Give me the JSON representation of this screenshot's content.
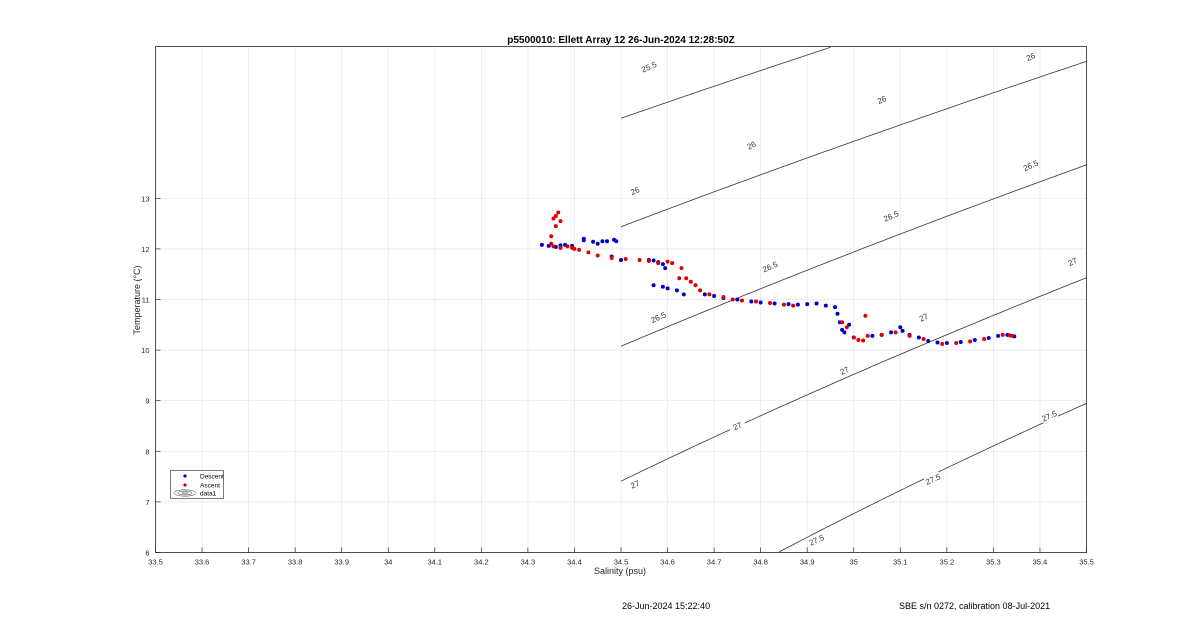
{
  "chart_data": {
    "type": "scatter",
    "title": "p5500010: Ellett Array 12 26-Jun-2024 12:28:50Z",
    "xlabel": "Salinity (psu)",
    "ylabel": "Temperature (°C)",
    "xlim": [
      33.5,
      35.5
    ],
    "ylim": [
      6,
      16
    ],
    "x_ticks": [
      "33.5",
      "33.6",
      "33.7",
      "33.8",
      "33.9",
      "34",
      "34.1",
      "34.2",
      "34.3",
      "34.4",
      "34.5",
      "34.6",
      "34.7",
      "34.8",
      "34.9",
      "35",
      "35.1",
      "35.2",
      "35.3",
      "35.4",
      "35.5"
    ],
    "y_ticks": [
      "6",
      "7",
      "8",
      "9",
      "10",
      "11",
      "12",
      "13"
    ],
    "grid": true,
    "legend_position": "bottom-left",
    "legend": [
      "Descent",
      "Ascent",
      "data1"
    ],
    "colors": {
      "descent": "#0000cc",
      "ascent": "#dd0000",
      "contour": "#333333",
      "grid": "#e6e6e6",
      "axis": "#262626"
    },
    "series": [
      {
        "name": "Descent",
        "points": [
          [
            34.33,
            12.08
          ],
          [
            34.345,
            12.06
          ],
          [
            34.36,
            12.04
          ],
          [
            34.37,
            12.07
          ],
          [
            34.38,
            12.08
          ],
          [
            34.395,
            12.06
          ],
          [
            34.42,
            12.2
          ],
          [
            34.42,
            12.17
          ],
          [
            34.44,
            12.14
          ],
          [
            34.45,
            12.1
          ],
          [
            34.46,
            12.15
          ],
          [
            34.47,
            12.15
          ],
          [
            34.485,
            12.18
          ],
          [
            34.49,
            12.15
          ],
          [
            34.48,
            11.85
          ],
          [
            34.5,
            11.78
          ],
          [
            34.56,
            11.78
          ],
          [
            34.57,
            11.77
          ],
          [
            34.58,
            11.74
          ],
          [
            34.59,
            11.7
          ],
          [
            34.595,
            11.62
          ],
          [
            34.57,
            11.28
          ],
          [
            34.59,
            11.25
          ],
          [
            34.6,
            11.22
          ],
          [
            34.62,
            11.18
          ],
          [
            34.635,
            11.1
          ],
          [
            34.68,
            11.1
          ],
          [
            34.7,
            11.07
          ],
          [
            34.72,
            11.03
          ],
          [
            34.75,
            11.0
          ],
          [
            34.78,
            10.96
          ],
          [
            34.8,
            10.94
          ],
          [
            34.83,
            10.92
          ],
          [
            34.86,
            10.91
          ],
          [
            34.88,
            10.9
          ],
          [
            34.9,
            10.91
          ],
          [
            34.92,
            10.92
          ],
          [
            34.94,
            10.88
          ],
          [
            34.96,
            10.85
          ],
          [
            34.965,
            10.72
          ],
          [
            34.97,
            10.55
          ],
          [
            34.975,
            10.4
          ],
          [
            34.98,
            10.35
          ],
          [
            34.99,
            10.5
          ],
          [
            35.0,
            10.25
          ],
          [
            35.04,
            10.28
          ],
          [
            35.06,
            10.3
          ],
          [
            35.08,
            10.35
          ],
          [
            35.1,
            10.45
          ],
          [
            35.105,
            10.38
          ],
          [
            35.12,
            10.3
          ],
          [
            35.14,
            10.25
          ],
          [
            35.16,
            10.18
          ],
          [
            35.18,
            10.15
          ],
          [
            35.2,
            10.14
          ],
          [
            35.23,
            10.16
          ],
          [
            35.26,
            10.2
          ],
          [
            35.29,
            10.24
          ],
          [
            35.31,
            10.28
          ],
          [
            35.33,
            10.3
          ],
          [
            35.345,
            10.27
          ]
        ]
      },
      {
        "name": "Ascent",
        "points": [
          [
            34.35,
            12.25
          ],
          [
            34.355,
            12.6
          ],
          [
            34.36,
            12.65
          ],
          [
            34.365,
            12.72
          ],
          [
            34.37,
            12.55
          ],
          [
            34.36,
            12.45
          ],
          [
            34.35,
            12.1
          ],
          [
            34.355,
            12.05
          ],
          [
            34.37,
            12.02
          ],
          [
            34.385,
            12.05
          ],
          [
            34.395,
            12.02
          ],
          [
            34.4,
            12.0
          ],
          [
            34.41,
            11.98
          ],
          [
            34.43,
            11.93
          ],
          [
            34.45,
            11.87
          ],
          [
            34.48,
            11.82
          ],
          [
            34.51,
            11.8
          ],
          [
            34.54,
            11.78
          ],
          [
            34.56,
            11.76
          ],
          [
            34.58,
            11.72
          ],
          [
            34.6,
            11.75
          ],
          [
            34.61,
            11.72
          ],
          [
            34.63,
            11.62
          ],
          [
            34.625,
            11.42
          ],
          [
            34.64,
            11.42
          ],
          [
            34.65,
            11.35
          ],
          [
            34.66,
            11.28
          ],
          [
            34.67,
            11.18
          ],
          [
            34.69,
            11.1
          ],
          [
            34.72,
            11.05
          ],
          [
            34.74,
            11.0
          ],
          [
            34.76,
            10.98
          ],
          [
            34.79,
            10.96
          ],
          [
            34.82,
            10.93
          ],
          [
            34.85,
            10.9
          ],
          [
            34.87,
            10.88
          ],
          [
            34.975,
            10.55
          ],
          [
            34.985,
            10.45
          ],
          [
            35.0,
            10.25
          ],
          [
            35.01,
            10.2
          ],
          [
            35.02,
            10.19
          ],
          [
            35.025,
            10.68
          ],
          [
            35.03,
            10.28
          ],
          [
            35.06,
            10.3
          ],
          [
            35.09,
            10.35
          ],
          [
            35.12,
            10.28
          ],
          [
            35.15,
            10.22
          ],
          [
            35.19,
            10.12
          ],
          [
            35.22,
            10.14
          ],
          [
            35.25,
            10.17
          ],
          [
            35.28,
            10.22
          ],
          [
            35.32,
            10.3
          ],
          [
            35.335,
            10.29
          ],
          [
            35.34,
            10.28
          ]
        ]
      }
    ],
    "contours": [
      {
        "label": "25.5",
        "label_positions": [
          [
            34.56,
            15.6
          ]
        ]
      },
      {
        "label": "26",
        "label_positions": [
          [
            34.53,
            13.15
          ],
          [
            34.78,
            14.05
          ],
          [
            35.06,
            14.95
          ],
          [
            35.38,
            15.8
          ]
        ]
      },
      {
        "label": "26.5",
        "label_positions": [
          [
            34.58,
            10.65
          ],
          [
            34.82,
            11.65
          ],
          [
            35.08,
            12.65
          ],
          [
            35.38,
            13.65
          ]
        ]
      },
      {
        "label": "27",
        "label_positions": [
          [
            34.53,
            7.35
          ],
          [
            34.75,
            8.5
          ],
          [
            34.98,
            9.6
          ],
          [
            35.15,
            10.65
          ],
          [
            35.47,
            11.75
          ]
        ]
      },
      {
        "label": "27.5",
        "label_positions": [
          [
            34.92,
            6.25
          ],
          [
            35.17,
            7.45
          ],
          [
            35.42,
            8.7
          ]
        ]
      }
    ],
    "footer": {
      "left": "26-Jun-2024 15:22:40",
      "right": "SBE s/n 0272, calibration 08-Jul-2021"
    }
  }
}
